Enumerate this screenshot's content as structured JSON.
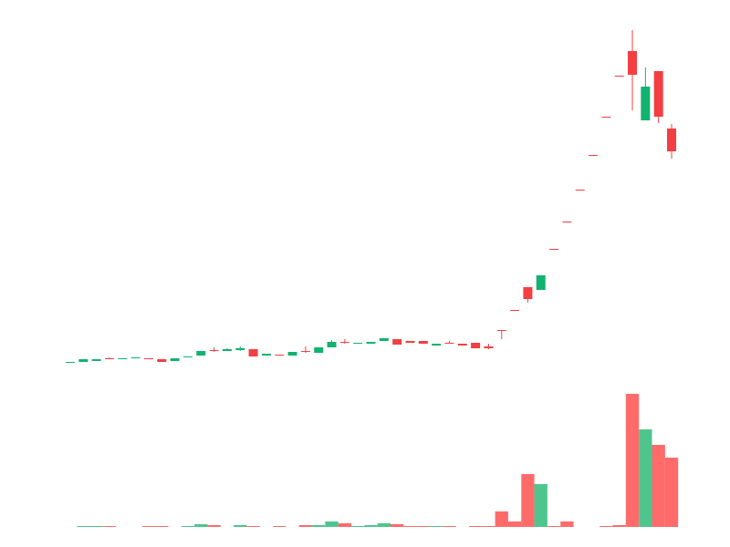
{
  "chart_data": {
    "type": "candlestick",
    "up_color": "#12b26f",
    "down_color": "#f23f42",
    "wick_color": "#555555",
    "volume_up_color": "#4fc58e",
    "volume_down_color": "#ff6b6b",
    "open": [
      12,
      13,
      14,
      17,
      16,
      17,
      17,
      16,
      14,
      18,
      20,
      26,
      25,
      26,
      27,
      20,
      21,
      20,
      25,
      23,
      29,
      35,
      33,
      33,
      36,
      38,
      36,
      36,
      31,
      34,
      33,
      34,
      30,
      48,
      70,
      95,
      92,
      137,
      167,
      202,
      240,
      282,
      327,
      354,
      278,
      332,
      269
    ],
    "high": [
      13,
      16,
      16,
      18,
      17,
      18,
      17,
      16,
      17,
      19,
      25,
      29,
      28,
      30,
      27,
      22,
      21,
      24,
      30,
      29,
      37,
      38,
      34,
      35,
      39,
      38,
      36,
      36,
      33,
      36,
      33,
      34,
      33,
      48,
      70,
      95,
      108,
      137,
      167,
      202,
      240,
      282,
      327,
      377,
      336,
      332,
      274
    ],
    "low": [
      12,
      13,
      14,
      16,
      16,
      17,
      16,
      13,
      14,
      18,
      20,
      24,
      25,
      25,
      19,
      20,
      20,
      20,
      23,
      23,
      29,
      33,
      33,
      33,
      36,
      32,
      34,
      33,
      31,
      33,
      31,
      28,
      27,
      38,
      69,
      78,
      92,
      136,
      166,
      201,
      239,
      281,
      326,
      289,
      278,
      275,
      236
    ],
    "close": [
      13,
      16,
      16,
      16,
      17,
      18,
      16,
      13,
      17,
      19,
      25,
      25,
      27,
      28,
      19,
      22,
      20,
      24,
      24,
      29,
      35,
      34,
      34,
      35,
      39,
      32,
      34,
      33,
      33,
      33,
      31,
      28,
      28,
      47,
      69,
      82,
      108,
      136,
      166,
      201,
      239,
      281,
      326,
      328,
      315,
      282,
      244
    ],
    "volume": [
      0,
      1,
      1,
      1,
      0,
      0,
      1,
      1,
      0,
      1,
      3,
      2,
      0,
      2,
      1,
      0,
      1,
      0,
      2,
      2,
      6,
      4,
      1,
      2,
      4,
      3,
      1,
      1,
      1,
      1,
      0,
      1,
      1,
      17,
      6,
      58,
      47,
      1,
      6,
      0,
      0,
      1,
      2,
      146,
      107,
      90,
      76
    ]
  }
}
